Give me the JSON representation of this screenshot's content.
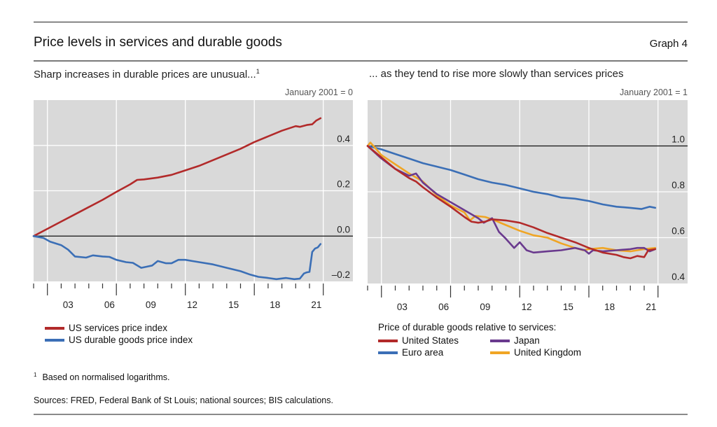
{
  "header": {
    "title": "Price levels in services and durable goods",
    "graph_number": "Graph 4"
  },
  "footnote": {
    "marker": "1",
    "text": "Based on normalised logarithms."
  },
  "sources": "Sources: FRED, Federal Bank of St Louis; national sources; BIS calculations.",
  "colors": {
    "red": "#b22a2a",
    "blue": "#3b6fb6",
    "purple": "#6a3a8e",
    "orange": "#f0a524",
    "plot_bg": "#d9d9d9"
  },
  "chart_data": [
    {
      "type": "line",
      "title": "Sharp increases in durable prices are unusual...",
      "title_footnote": "1",
      "unit_label": "January 2001 = 0",
      "xlabel": "",
      "ylabel": "",
      "x_tick_labels": [
        "03",
        "06",
        "09",
        "12",
        "15",
        "18",
        "21"
      ],
      "x_range": [
        2001.0,
        2022.3
      ],
      "ylim": [
        -0.2,
        0.6
      ],
      "y_ticks": [
        -0.2,
        0.0,
        0.2,
        0.4
      ],
      "y_tick_labels": [
        "–0.2",
        "0.0",
        "0.2",
        "0.4"
      ],
      "reference_line": 0.0,
      "grid": true,
      "legend_position": "bottom-left",
      "series": [
        {
          "name": "US services price index",
          "color_key": "red",
          "x": [
            2001.0,
            2002.0,
            2003.0,
            2004.0,
            2005.0,
            2006.0,
            2007.0,
            2008.0,
            2008.5,
            2009.0,
            2010.0,
            2011.0,
            2012.0,
            2013.0,
            2014.0,
            2015.0,
            2016.0,
            2017.0,
            2018.0,
            2019.0,
            2020.0,
            2020.3,
            2020.8,
            2021.2,
            2021.5,
            2021.8
          ],
          "y": [
            0.0,
            0.032,
            0.064,
            0.096,
            0.128,
            0.16,
            0.195,
            0.228,
            0.248,
            0.25,
            0.258,
            0.27,
            0.29,
            0.31,
            0.335,
            0.36,
            0.385,
            0.415,
            0.44,
            0.465,
            0.485,
            0.482,
            0.49,
            0.493,
            0.51,
            0.52
          ]
        },
        {
          "name": "US durable goods price index",
          "color_key": "blue",
          "x": [
            2001.0,
            2001.7,
            2002.2,
            2003.0,
            2003.5,
            2004.0,
            2004.8,
            2005.3,
            2006.0,
            2006.5,
            2007.0,
            2007.7,
            2008.2,
            2008.8,
            2009.2,
            2009.6,
            2010.0,
            2010.6,
            2011.0,
            2011.5,
            2012.0,
            2012.5,
            2013.0,
            2014.0,
            2015.0,
            2016.0,
            2016.7,
            2017.3,
            2018.0,
            2018.6,
            2019.3,
            2019.9,
            2020.3,
            2020.6,
            2020.8,
            2021.0,
            2021.2,
            2021.4,
            2021.6,
            2021.8
          ],
          "y": [
            0.0,
            -0.008,
            -0.025,
            -0.04,
            -0.06,
            -0.09,
            -0.095,
            -0.085,
            -0.09,
            -0.092,
            -0.105,
            -0.115,
            -0.118,
            -0.14,
            -0.135,
            -0.13,
            -0.11,
            -0.12,
            -0.12,
            -0.105,
            -0.105,
            -0.11,
            -0.115,
            -0.125,
            -0.14,
            -0.155,
            -0.17,
            -0.18,
            -0.185,
            -0.19,
            -0.185,
            -0.19,
            -0.188,
            -0.165,
            -0.16,
            -0.158,
            -0.07,
            -0.055,
            -0.05,
            -0.035
          ]
        }
      ]
    },
    {
      "type": "line",
      "title": "... as they tend to rise more slowly than services prices",
      "unit_label": "January 2001 = 1",
      "xlabel": "",
      "ylabel": "",
      "x_tick_labels": [
        "03",
        "06",
        "09",
        "12",
        "15",
        "18",
        "21"
      ],
      "x_range": [
        2001.0,
        2022.3
      ],
      "ylim": [
        0.4,
        1.2
      ],
      "y_ticks": [
        0.4,
        0.6,
        0.8,
        1.0
      ],
      "y_tick_labels": [
        "0.4",
        "0.6",
        "0.8",
        "1.0"
      ],
      "reference_line": 1.0,
      "grid": true,
      "legend_title": "Price of durable goods relative to services:",
      "legend_position": "bottom-center",
      "series": [
        {
          "name": "United States",
          "color_key": "red",
          "x": [
            2001.0,
            2002.0,
            2003.0,
            2004.0,
            2004.5,
            2005.0,
            2006.0,
            2007.0,
            2008.0,
            2008.5,
            2009.0,
            2009.5,
            2010.0,
            2011.0,
            2012.0,
            2013.0,
            2014.0,
            2015.0,
            2016.0,
            2017.0,
            2018.0,
            2019.0,
            2019.5,
            2020.0,
            2020.5,
            2021.0,
            2021.3,
            2021.8
          ],
          "y": [
            1.0,
            0.95,
            0.9,
            0.86,
            0.845,
            0.82,
            0.775,
            0.735,
            0.69,
            0.67,
            0.665,
            0.67,
            0.68,
            0.675,
            0.665,
            0.645,
            0.62,
            0.6,
            0.58,
            0.555,
            0.535,
            0.525,
            0.515,
            0.51,
            0.52,
            0.515,
            0.545,
            0.55
          ]
        },
        {
          "name": "Euro area",
          "color_key": "blue",
          "x": [
            2001.0,
            2002.0,
            2003.0,
            2004.0,
            2005.0,
            2006.0,
            2007.0,
            2008.0,
            2009.0,
            2010.0,
            2011.0,
            2012.0,
            2013.0,
            2014.0,
            2015.0,
            2016.0,
            2017.0,
            2018.0,
            2019.0,
            2020.0,
            2020.8,
            2021.4,
            2021.8
          ],
          "y": [
            1.0,
            0.985,
            0.965,
            0.945,
            0.925,
            0.91,
            0.895,
            0.875,
            0.855,
            0.84,
            0.83,
            0.815,
            0.8,
            0.79,
            0.775,
            0.77,
            0.76,
            0.745,
            0.735,
            0.73,
            0.725,
            0.735,
            0.73
          ]
        },
        {
          "name": "Japan",
          "color_key": "purple",
          "x": [
            2001.0,
            2002.0,
            2003.0,
            2004.0,
            2004.5,
            2005.0,
            2006.0,
            2007.0,
            2008.0,
            2009.0,
            2009.4,
            2010.0,
            2010.5,
            2011.0,
            2011.6,
            2012.0,
            2012.5,
            2013.0,
            2014.0,
            2015.0,
            2016.0,
            2016.7,
            2017.0,
            2017.3,
            2018.0,
            2019.0,
            2020.0,
            2020.5,
            2021.0,
            2021.4,
            2021.8
          ],
          "y": [
            1.0,
            0.945,
            0.9,
            0.87,
            0.88,
            0.84,
            0.79,
            0.755,
            0.72,
            0.685,
            0.665,
            0.685,
            0.625,
            0.595,
            0.555,
            0.58,
            0.545,
            0.535,
            0.54,
            0.545,
            0.555,
            0.545,
            0.53,
            0.545,
            0.54,
            0.545,
            0.55,
            0.555,
            0.555,
            0.54,
            0.55
          ]
        },
        {
          "name": "United Kingdom",
          "color_key": "orange",
          "x": [
            2001.0,
            2001.2,
            2002.0,
            2003.0,
            2004.0,
            2005.0,
            2006.0,
            2007.0,
            2008.0,
            2008.4,
            2008.8,
            2009.5,
            2010.0,
            2011.0,
            2012.0,
            2013.0,
            2014.0,
            2015.0,
            2016.0,
            2016.6,
            2017.0,
            2018.0,
            2019.0,
            2020.0,
            2021.0,
            2021.8
          ],
          "y": [
            1.0,
            1.015,
            0.96,
            0.92,
            0.88,
            0.845,
            0.785,
            0.74,
            0.71,
            0.675,
            0.695,
            0.69,
            0.68,
            0.655,
            0.63,
            0.61,
            0.6,
            0.575,
            0.555,
            0.545,
            0.55,
            0.555,
            0.545,
            0.54,
            0.55,
            0.555
          ]
        }
      ]
    }
  ],
  "legends": {
    "left": [
      "US services price index",
      "US durable goods price index"
    ],
    "right_title": "Price of durable goods relative to services:",
    "right": [
      "United States",
      "Japan",
      "Euro area",
      "United Kingdom"
    ]
  }
}
